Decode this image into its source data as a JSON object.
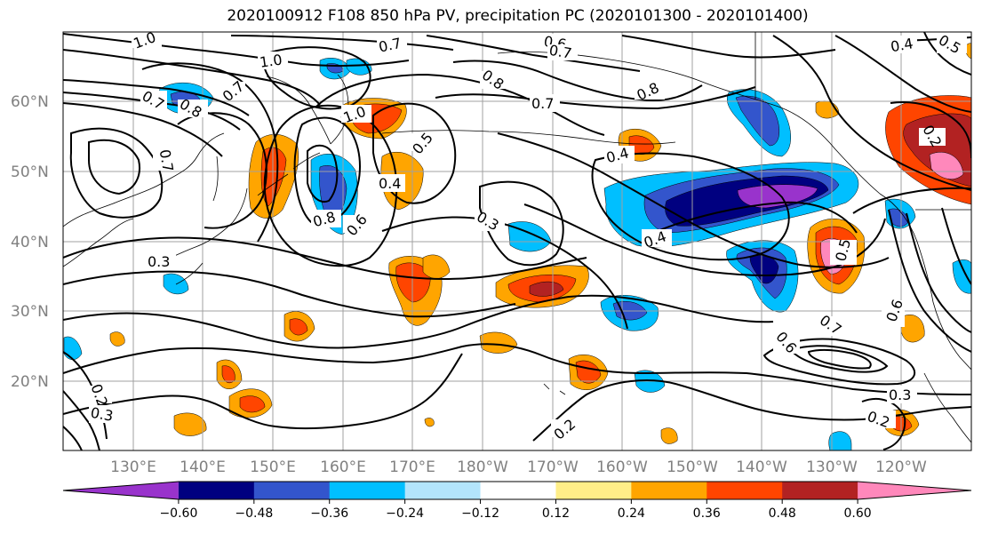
{
  "title": "2020100912 F108 850 hPa PV, precipitation PC (2020101300 - 2020101400)",
  "lat_labels": [
    "60°N",
    "50°N",
    "40°N",
    "30°N",
    "20°N"
  ],
  "lon_labels": [
    "130°E",
    "140°E",
    "150°E",
    "160°E",
    "170°E",
    "180°W",
    "170°W",
    "160°W",
    "150°W",
    "140°W",
    "130°W",
    "120°W"
  ],
  "contour_labels": [
    "1.0",
    "1.0",
    "0.7",
    "0.6",
    "0.7",
    "0.4",
    "0.5",
    "0.8",
    "0.7",
    "0.8",
    "0.7",
    "0.8",
    "0.7",
    "1.0",
    "0.5",
    "0.4",
    "0.4",
    "0.2",
    "0.7",
    "0.8",
    "0.6",
    "0.3",
    "0.4",
    "0.3",
    "0.5",
    "0.6",
    "0.7",
    "0.6",
    "0.2",
    "0.3",
    "0.2",
    "0.3",
    "0.2"
  ],
  "colorbar": {
    "ticks": [
      "−0.60",
      "−0.48",
      "−0.36",
      "−0.24",
      "−0.12",
      "0.12",
      "0.24",
      "0.36",
      "0.48",
      "0.60"
    ],
    "colors": [
      "#9933cc",
      "#000080",
      "#3355cc",
      "#00bfff",
      "#b3e5fc",
      "#ffffff",
      "#ffee88",
      "#ffa500",
      "#ff4500",
      "#b22222",
      "#ff88bb"
    ]
  },
  "colors": {
    "positive_low": "#ffa500",
    "positive_mid": "#ff4500",
    "positive_high": "#b22222",
    "positive_max": "#ff88bb",
    "negative_low": "#00bfff",
    "negative_mid": "#3355cc",
    "negative_high": "#000080",
    "negative_max": "#9933cc"
  }
}
